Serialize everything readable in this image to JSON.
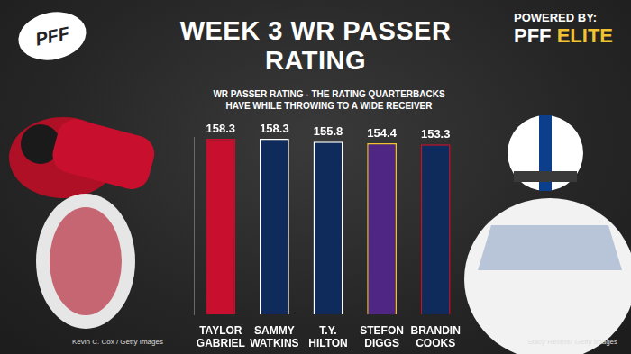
{
  "chart_data": {
    "type": "bar",
    "title": "WEEK 3 WR PASSER RATING",
    "subtitle": "WR PASSER RATING - THE RATING QUARTERBACKS HAVE WHILE THROWING TO A WIDE RECEIVER",
    "categories": [
      "TAYLOR GABRIEL",
      "SAMMY WATKINS",
      "T.Y. HILTON",
      "STEFON DIGGS",
      "BRANDIN COOKS"
    ],
    "values": [
      158.3,
      158.3,
      155.8,
      154.4,
      153.3
    ],
    "colors": [
      "#c8102e",
      "#0f2b5b",
      "#0f2b5b",
      "#4f2683",
      "#0f2b5b"
    ],
    "ylim": [
      0,
      160
    ],
    "grid": false,
    "data_labels": true,
    "tick_labels": "x",
    "annotations": [
      "PFF",
      "POWERED BY:",
      "PFF ELITE",
      "Kevin C. Cox / Getty Images",
      "Stacy Revere/ Getty Images"
    ]
  }
}
